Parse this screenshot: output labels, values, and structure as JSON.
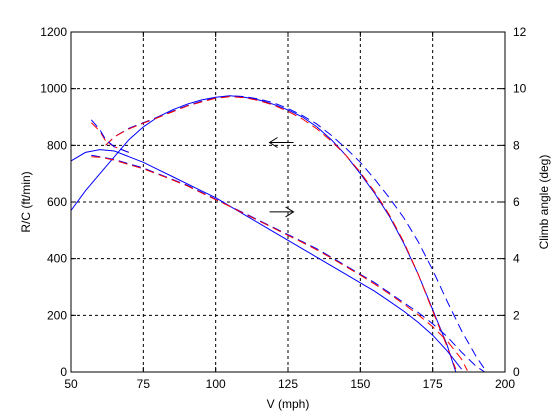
{
  "chart_data": {
    "type": "line",
    "title": "",
    "xlabel": "V (mph)",
    "ylabel": "R/C (ft/min)",
    "y2label": "Climb angle (deg)",
    "xlim": [
      50,
      200
    ],
    "ylim": [
      0,
      1200
    ],
    "y2lim": [
      0,
      12
    ],
    "xticks": [
      50,
      75,
      100,
      125,
      150,
      175,
      200
    ],
    "yticks": [
      0,
      200,
      400,
      600,
      800,
      1000,
      1200
    ],
    "y2ticks": [
      0,
      2,
      4,
      6,
      8,
      10,
      12
    ],
    "grid": true,
    "colors": {
      "blue": "#0000ff",
      "red": "#ff0000",
      "arrow": "#000000"
    },
    "series": [
      {
        "axis": "left",
        "color": "blue",
        "dash": "solid",
        "points": [
          [
            50,
            570
          ],
          [
            55,
            640
          ],
          [
            60,
            700
          ],
          [
            65,
            760
          ],
          [
            70,
            820
          ],
          [
            75,
            865
          ],
          [
            80,
            900
          ],
          [
            85,
            925
          ],
          [
            90,
            945
          ],
          [
            95,
            960
          ],
          [
            100,
            970
          ],
          [
            105,
            975
          ],
          [
            110,
            970
          ],
          [
            115,
            960
          ],
          [
            120,
            945
          ],
          [
            125,
            925
          ],
          [
            130,
            900
          ],
          [
            135,
            865
          ],
          [
            140,
            820
          ],
          [
            145,
            765
          ],
          [
            150,
            700
          ],
          [
            155,
            630
          ],
          [
            160,
            550
          ],
          [
            165,
            455
          ],
          [
            170,
            345
          ],
          [
            175,
            220
          ],
          [
            180,
            95
          ],
          [
            183,
            0
          ]
        ]
      },
      {
        "axis": "left",
        "color": "blue",
        "dash": "dashed",
        "points": [
          [
            62,
            800
          ],
          [
            65,
            830
          ],
          [
            70,
            860
          ],
          [
            75,
            880
          ],
          [
            80,
            900
          ],
          [
            85,
            920
          ],
          [
            90,
            940
          ],
          [
            95,
            955
          ],
          [
            100,
            968
          ],
          [
            105,
            975
          ],
          [
            110,
            972
          ],
          [
            115,
            963
          ],
          [
            120,
            950
          ],
          [
            125,
            930
          ],
          [
            130,
            905
          ],
          [
            135,
            875
          ],
          [
            140,
            835
          ],
          [
            145,
            790
          ],
          [
            150,
            740
          ],
          [
            155,
            680
          ],
          [
            160,
            615
          ],
          [
            165,
            545
          ],
          [
            170,
            460
          ],
          [
            175,
            360
          ],
          [
            180,
            250
          ],
          [
            185,
            145
          ],
          [
            190,
            55
          ],
          [
            193,
            10
          ]
        ]
      },
      {
        "axis": "left",
        "color": "red",
        "dash": "dashed",
        "points": [
          [
            62,
            800
          ],
          [
            65,
            830
          ],
          [
            70,
            858
          ],
          [
            75,
            878
          ],
          [
            80,
            898
          ],
          [
            85,
            918
          ],
          [
            90,
            938
          ],
          [
            95,
            953
          ],
          [
            100,
            966
          ],
          [
            105,
            972
          ],
          [
            110,
            968
          ],
          [
            115,
            958
          ],
          [
            120,
            942
          ],
          [
            125,
            920
          ],
          [
            130,
            893
          ],
          [
            135,
            858
          ],
          [
            140,
            815
          ],
          [
            145,
            765
          ],
          [
            150,
            705
          ],
          [
            155,
            635
          ],
          [
            160,
            555
          ],
          [
            165,
            460
          ],
          [
            170,
            345
          ],
          [
            175,
            215
          ],
          [
            180,
            90
          ],
          [
            183,
            10
          ]
        ]
      },
      {
        "axis": "right",
        "color": "blue",
        "dash": "solid",
        "points": [
          [
            50,
            7.45
          ],
          [
            55,
            7.75
          ],
          [
            60,
            7.85
          ],
          [
            65,
            7.8
          ],
          [
            70,
            7.6
          ],
          [
            75,
            7.4
          ],
          [
            80,
            7.15
          ],
          [
            85,
            6.9
          ],
          [
            90,
            6.65
          ],
          [
            95,
            6.4
          ],
          [
            100,
            6.15
          ],
          [
            105,
            5.85
          ],
          [
            110,
            5.55
          ],
          [
            115,
            5.25
          ],
          [
            120,
            4.95
          ],
          [
            125,
            4.65
          ],
          [
            130,
            4.35
          ],
          [
            135,
            4.05
          ],
          [
            140,
            3.75
          ],
          [
            145,
            3.45
          ],
          [
            150,
            3.15
          ],
          [
            155,
            2.85
          ],
          [
            160,
            2.5
          ],
          [
            165,
            2.15
          ],
          [
            170,
            1.75
          ],
          [
            175,
            1.3
          ],
          [
            180,
            0.75
          ],
          [
            185,
            0.1
          ]
        ]
      },
      {
        "axis": "right",
        "color": "blue",
        "dash": "dashed",
        "points": [
          [
            57,
            7.65
          ],
          [
            60,
            7.6
          ],
          [
            65,
            7.5
          ],
          [
            70,
            7.35
          ],
          [
            75,
            7.2
          ],
          [
            80,
            7.0
          ],
          [
            85,
            6.8
          ],
          [
            90,
            6.6
          ],
          [
            95,
            6.35
          ],
          [
            100,
            6.1
          ],
          [
            105,
            5.85
          ],
          [
            110,
            5.6
          ],
          [
            115,
            5.35
          ],
          [
            120,
            5.1
          ],
          [
            125,
            4.85
          ],
          [
            130,
            4.6
          ],
          [
            135,
            4.35
          ],
          [
            140,
            4.05
          ],
          [
            145,
            3.75
          ],
          [
            150,
            3.45
          ],
          [
            155,
            3.15
          ],
          [
            160,
            2.8
          ],
          [
            165,
            2.45
          ],
          [
            170,
            2.1
          ],
          [
            175,
            1.7
          ],
          [
            180,
            1.25
          ],
          [
            185,
            0.7
          ],
          [
            190,
            0.2
          ],
          [
            193,
            0.0
          ]
        ]
      },
      {
        "axis": "right",
        "color": "red",
        "dash": "dashed",
        "points": [
          [
            57,
            7.6
          ],
          [
            60,
            7.58
          ],
          [
            65,
            7.48
          ],
          [
            70,
            7.32
          ],
          [
            75,
            7.17
          ],
          [
            80,
            6.98
          ],
          [
            85,
            6.78
          ],
          [
            90,
            6.58
          ],
          [
            95,
            6.33
          ],
          [
            100,
            6.08
          ],
          [
            105,
            5.84
          ],
          [
            110,
            5.58
          ],
          [
            115,
            5.33
          ],
          [
            120,
            5.08
          ],
          [
            125,
            4.82
          ],
          [
            130,
            4.57
          ],
          [
            135,
            4.31
          ],
          [
            140,
            4.02
          ],
          [
            145,
            3.72
          ],
          [
            150,
            3.42
          ],
          [
            155,
            3.1
          ],
          [
            160,
            2.76
          ],
          [
            165,
            2.4
          ],
          [
            170,
            2.02
          ],
          [
            175,
            1.6
          ],
          [
            180,
            1.1
          ],
          [
            185,
            0.45
          ],
          [
            187,
            0.05
          ]
        ]
      },
      {
        "axis": "right",
        "color": "red",
        "dash": "dashed",
        "points": [
          [
            57,
            8.8
          ],
          [
            60,
            8.5
          ],
          [
            62,
            8.15
          ],
          [
            65,
            7.95
          ],
          [
            70,
            7.75
          ]
        ]
      },
      {
        "axis": "right",
        "color": "blue",
        "dash": "dashed",
        "points": [
          [
            57,
            8.9
          ],
          [
            60,
            8.55
          ],
          [
            62,
            8.2
          ],
          [
            65,
            7.95
          ],
          [
            70,
            7.75
          ]
        ]
      }
    ],
    "annotations": [
      {
        "type": "arrow",
        "direction": "left",
        "x": 120,
        "y": 810,
        "axis": "left"
      },
      {
        "type": "arrow",
        "direction": "right",
        "x": 120,
        "y": 5.65,
        "axis": "right"
      }
    ]
  }
}
